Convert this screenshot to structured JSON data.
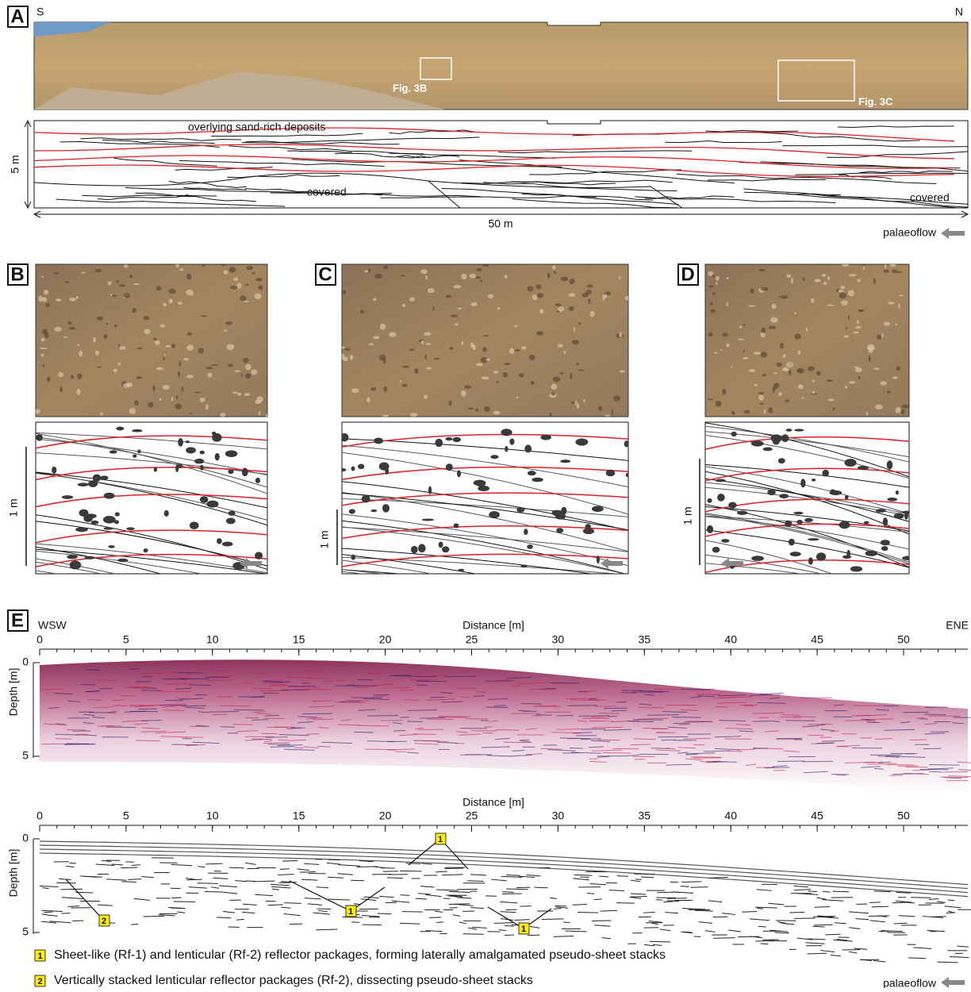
{
  "panel_a": {
    "label": "A",
    "left": "S",
    "right": "N",
    "photo_labels": [
      "Fig. 3B",
      "Fig. 3C"
    ],
    "sketch_labels": [
      "overlying sand-rich deposits",
      "covered",
      "covered"
    ],
    "vertical_scale": "5 m",
    "horizontal_scale": "50 m",
    "palaeoflow": "palaeoflow"
  },
  "panel_b": {
    "label": "B",
    "scale": "1 m"
  },
  "panel_c": {
    "label": "C",
    "scale": "1 m"
  },
  "panel_d": {
    "label": "D",
    "scale": "1 m"
  },
  "panel_e": {
    "label": "E",
    "left": "WSW",
    "right": "ENE",
    "x_axis_title": "Distance [m]",
    "y_axis_title": "Depth [m]",
    "xticks": [
      0,
      5,
      10,
      15,
      20,
      25,
      30,
      35,
      40,
      45,
      50
    ],
    "yticks": [
      0,
      5
    ],
    "callouts": [
      "1",
      "1",
      "1",
      "2"
    ],
    "legend": [
      {
        "marker": "1",
        "text": "Sheet-like (Rf-1) and lenticular (Rf-2) reflector packages, forming laterally amalgamated pseudo-sheet stacks"
      },
      {
        "marker": "2",
        "text": "Vertically stacked lenticular reflector packages (Rf-2), dissecting pseudo-sheet stacks"
      }
    ],
    "palaeoflow": "palaeoflow"
  }
}
